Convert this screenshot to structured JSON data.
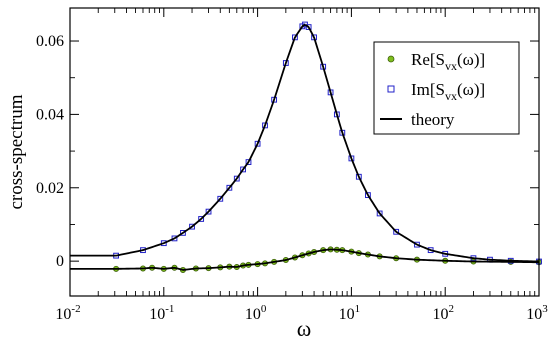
{
  "chart_data": {
    "type": "scatter",
    "xscale": "log",
    "xlim": [
      0.01,
      1000
    ],
    "ylim": [
      -0.0095,
      0.069
    ],
    "xlabel": "ω",
    "ylabel": "cross-spectrum",
    "x_ticks": [
      {
        "value": 0.01,
        "base": "10",
        "exp": "-2"
      },
      {
        "value": 0.1,
        "base": "10",
        "exp": "-1"
      },
      {
        "value": 1,
        "base": "10",
        "exp": "0"
      },
      {
        "value": 10,
        "base": "10",
        "exp": "1"
      },
      {
        "value": 100,
        "base": "10",
        "exp": "2"
      },
      {
        "value": 1000,
        "base": "10",
        "exp": "3"
      }
    ],
    "y_ticks": [
      {
        "value": 0,
        "label": "0"
      },
      {
        "value": 0.02,
        "label": "0.02"
      },
      {
        "value": 0.04,
        "label": "0.04"
      },
      {
        "value": 0.06,
        "label": "0.06"
      }
    ],
    "grid": false,
    "legend_position": "top-right",
    "legend": [
      {
        "prefix": "Re[S",
        "sub": "vx",
        "suffix": "(ω)]",
        "marker": "circle",
        "color": "#7fbf1f"
      },
      {
        "prefix": "Im[S",
        "sub": "vx",
        "suffix": "(ω)]",
        "marker": "square",
        "color": "#2020c8"
      },
      {
        "text": "theory",
        "marker": "line",
        "color": "#000000"
      }
    ],
    "series": [
      {
        "name": "Re[Svx(ω)]",
        "marker": "circle",
        "color": "#7fbf1f",
        "x": [
          0.031,
          0.06,
          0.075,
          0.1,
          0.13,
          0.16,
          0.22,
          0.3,
          0.4,
          0.5,
          0.6,
          0.7,
          0.8,
          1.0,
          1.2,
          1.5,
          2.0,
          2.5,
          3.0,
          3.5,
          4.0,
          5.0,
          6.0,
          7.0,
          8.0,
          10,
          12,
          15,
          20,
          30,
          50,
          100,
          200,
          500,
          1000
        ],
        "y": [
          -0.0021,
          -0.002,
          -0.0018,
          -0.0021,
          -0.0018,
          -0.0024,
          -0.002,
          -0.0019,
          -0.0017,
          -0.0015,
          -0.0016,
          -0.0012,
          -0.001,
          -0.0008,
          -0.0006,
          -0.0002,
          0.0003,
          0.001,
          0.0016,
          0.0021,
          0.0025,
          0.003,
          0.0032,
          0.0031,
          0.003,
          0.0026,
          0.0022,
          0.0018,
          0.0013,
          0.0008,
          0.0004,
          0.0001,
          -0.0001,
          -0.0002,
          -0.0003
        ]
      },
      {
        "name": "Im[Svx(ω)]",
        "marker": "square",
        "color": "#2020c8",
        "x": [
          0.031,
          0.06,
          0.1,
          0.13,
          0.16,
          0.2,
          0.25,
          0.3,
          0.4,
          0.5,
          0.6,
          0.7,
          0.8,
          1.0,
          1.2,
          1.5,
          2.0,
          2.5,
          3.0,
          3.2,
          3.5,
          4.0,
          5.0,
          6.0,
          7.0,
          8.0,
          10,
          12,
          15,
          20,
          30,
          50,
          70,
          100,
          200,
          300,
          500,
          1000
        ],
        "y": [
          0.0015,
          0.003,
          0.0049,
          0.0062,
          0.0077,
          0.0094,
          0.0115,
          0.0135,
          0.017,
          0.02,
          0.0225,
          0.025,
          0.027,
          0.032,
          0.037,
          0.044,
          0.054,
          0.061,
          0.064,
          0.0645,
          0.0638,
          0.061,
          0.053,
          0.046,
          0.04,
          0.035,
          0.028,
          0.023,
          0.018,
          0.013,
          0.008,
          0.0045,
          0.003,
          0.002,
          0.0008,
          0.0004,
          0.0001,
          -0.0001
        ]
      },
      {
        "name": "theory",
        "marker": "line",
        "color": "#000000"
      }
    ]
  }
}
